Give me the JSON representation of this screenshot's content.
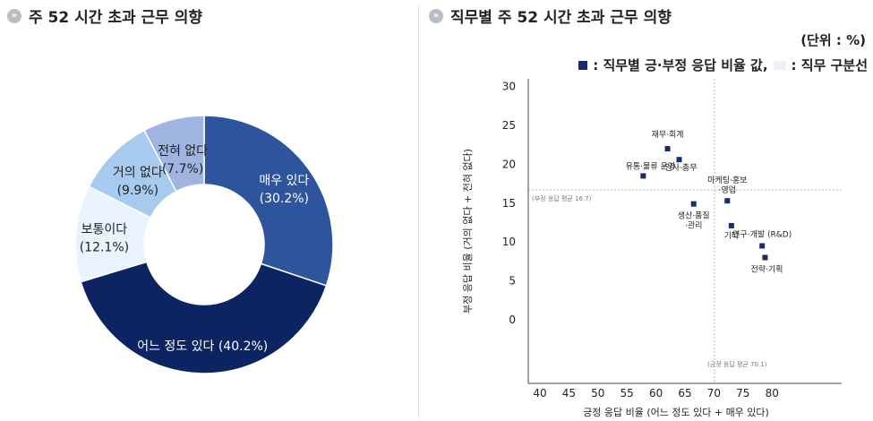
{
  "left_panel": {
    "title": "주 52 시간 초과 근무 의향"
  },
  "right_panel": {
    "title": "직무별 주 52 시간 초과 근무 의향",
    "unit": "(단위 : %)",
    "legend": {
      "item1": ": 직무별 긍·부정 응답 비율 값,",
      "item2": ": 직무 구분선"
    }
  },
  "colors": {
    "very": "#2d549c",
    "somewhat": "#0d2462",
    "neutral": "#e8f3fd",
    "little": "#a7cbee",
    "none": "#9fb4e1",
    "marker": "#1a2b6d"
  },
  "chart_data": [
    {
      "type": "pie",
      "title": "주 52 시간 초과 근무 의향",
      "slices": [
        {
          "label": "매우 있다",
          "value": 30.2,
          "display": "(30.2%)"
        },
        {
          "label": "어느 정도 있다",
          "value": 40.2,
          "display": "(40.2%)"
        },
        {
          "label": "보통이다",
          "value": 12.1,
          "display": "(12.1%)"
        },
        {
          "label": "거의 없다",
          "value": 9.9,
          "display": "(9.9%)"
        },
        {
          "label": "전혀 없다",
          "value": 7.7,
          "display": "(7.7%)"
        }
      ]
    },
    {
      "type": "scatter",
      "title": "직무별 주 52 시간 초과 근무 의향",
      "xlabel": "긍정 응답 비율 (어느 정도 있다 + 매우 있다)",
      "ylabel": "부정 응답 비율 (거의 없다 + 전혀 없다)",
      "xlim": [
        38,
        92
      ],
      "ylim": [
        -8.2,
        31
      ],
      "xticks": [
        40,
        45,
        50,
        55,
        60,
        65,
        70,
        75,
        80
      ],
      "yticks": [
        0,
        5,
        10,
        15,
        20,
        25,
        30
      ],
      "points": [
        {
          "label": "재무·회계",
          "x": 62.0,
          "y": 22.0
        },
        {
          "label": "인사·총무",
          "x": 64.0,
          "y": 20.6
        },
        {
          "label": "유통·물류 운영",
          "x": 57.8,
          "y": 18.5
        },
        {
          "label": "마케팅·홍보·영업",
          "x": 72.3,
          "y": 15.3
        },
        {
          "label": "생산·품질·관리",
          "x": 66.5,
          "y": 14.9
        },
        {
          "label": "기타",
          "x": 73.0,
          "y": 12.1
        },
        {
          "label": "연구·개발 (R&D)",
          "x": 78.3,
          "y": 9.5
        },
        {
          "label": "전략·기획",
          "x": 78.8,
          "y": 8.0
        }
      ],
      "reference_lines": [
        {
          "axis": "y",
          "value": 16.7,
          "label": "(부정 응답 평균 16.7)"
        },
        {
          "axis": "x",
          "value": 70.1,
          "label": "(긍정 응답 평균 70.1)"
        }
      ]
    }
  ]
}
